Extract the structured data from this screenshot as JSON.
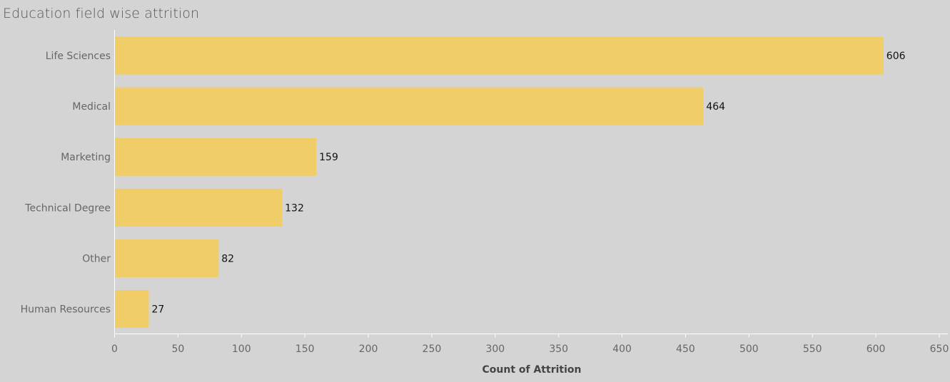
{
  "title": "Education field wise attrition",
  "colors": {
    "bar": "#f0cd67",
    "background": "#d4d4d4",
    "axis": "#ffffff"
  },
  "chart_data": {
    "type": "bar",
    "orientation": "horizontal",
    "title": "Education field wise attrition",
    "xlabel": "Count of Attrition",
    "ylabel": "",
    "categories": [
      "Life Sciences",
      "Medical",
      "Marketing",
      "Technical Degree",
      "Other",
      "Human Resources"
    ],
    "values": [
      606,
      464,
      159,
      132,
      82,
      27
    ],
    "xlim": [
      0,
      650
    ],
    "xticks": [
      0,
      50,
      100,
      150,
      200,
      250,
      300,
      350,
      400,
      450,
      500,
      550,
      600,
      650
    ],
    "grid": false,
    "data_labels": true
  }
}
